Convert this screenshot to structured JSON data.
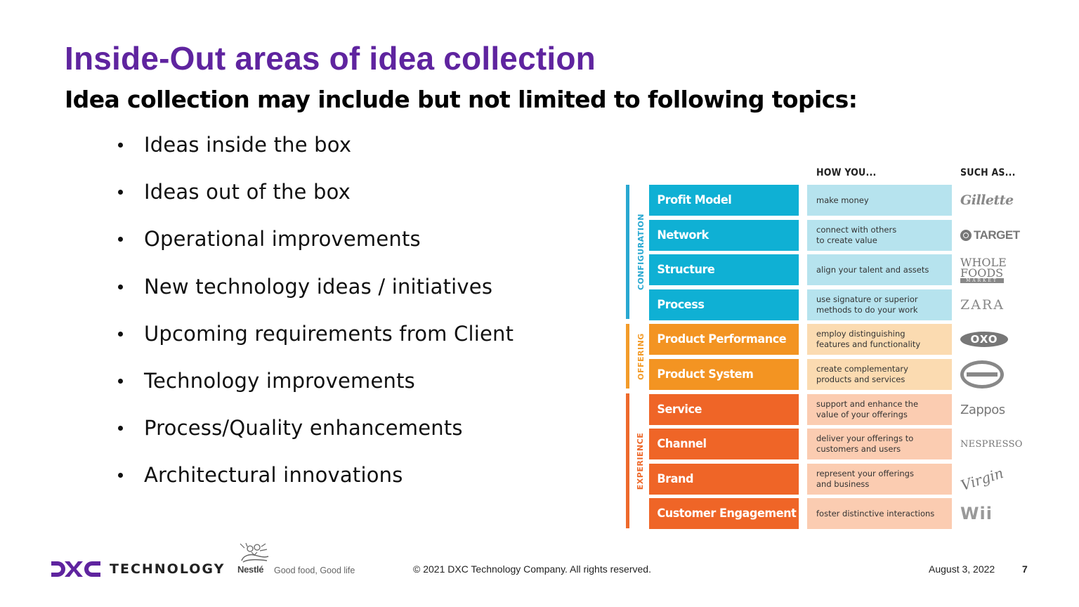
{
  "title": "Inside-Out areas of idea collection",
  "subtitle": "Idea collection may include but not limited to following topics:",
  "bullets": [
    "Ideas inside the box",
    "Ideas out of the box",
    "Operational improvements",
    "New technology ideas / initiatives",
    "Upcoming requirements from Client",
    "Technology improvements",
    "Process/Quality enhancements",
    "Architectural innovations"
  ],
  "framework": {
    "header_how": "HOW YOU...",
    "header_such": "SUCH AS...",
    "groups": [
      {
        "label": "CONFIGURATION",
        "color": "#29a8d1"
      },
      {
        "label": "OFFERING",
        "color": "#f39c2a"
      },
      {
        "label": "EXPERIENCE",
        "color": "#ee6a2c"
      }
    ],
    "rows": [
      {
        "name": "Profit Model",
        "desc": "make money",
        "logo": "Gillette",
        "logo_icon": "gillette-logo",
        "group": 0
      },
      {
        "name": "Network",
        "desc": "connect with others\nto create value",
        "logo": "TARGET",
        "logo_icon": "target-logo",
        "group": 0
      },
      {
        "name": "Structure",
        "desc": "align your talent and assets",
        "logo": "WHOLE\nFOODS",
        "logo_sub": "MARKET",
        "logo_icon": "whole-foods-logo",
        "group": 0
      },
      {
        "name": "Process",
        "desc": "use signature or superior\nmethods to do your work",
        "logo": "ZARA",
        "logo_icon": "zara-logo",
        "group": 0
      },
      {
        "name": "Product Performance",
        "desc": "employ distinguishing\nfeatures and functionality",
        "logo": "OXO",
        "logo_icon": "oxo-logo",
        "group": 1
      },
      {
        "name": "Product System",
        "desc": "create complementary\nproducts and services",
        "logo": "",
        "logo_icon": "scion-logo",
        "group": 1
      },
      {
        "name": "Service",
        "desc": "support and enhance the\nvalue of your offerings",
        "logo": "Zappos",
        "logo_icon": "zappos-logo",
        "group": 2
      },
      {
        "name": "Channel",
        "desc": "deliver your offerings to\ncustomers and users",
        "logo": "NESPRESSO",
        "logo_icon": "nespresso-logo",
        "group": 2
      },
      {
        "name": "Brand",
        "desc": "represent your offerings\nand business",
        "logo": "Virgin",
        "logo_icon": "virgin-logo",
        "group": 2
      },
      {
        "name": "Customer Engagement",
        "desc": "foster distinctive interactions",
        "logo": "Wii",
        "logo_icon": "wii-logo",
        "group": 2
      }
    ],
    "row_colors": {
      "config": {
        "name": "#0fb0d4",
        "desc": "#b6e3ee"
      },
      "offering": {
        "name": "#f39422",
        "desc": "#fbdbb1"
      },
      "experience": {
        "name": "#ef6527",
        "desc": "#fbccb1"
      }
    }
  },
  "footer": {
    "brand": "TECHNOLOGY",
    "brand_icon": "dxc-logo",
    "partner": "Nestlé",
    "partner_tagline": "Good food, Good life",
    "partner_icon": "nestle-nest-logo",
    "copyright": "© 2021 DXC Technology Company. All rights reserved.",
    "date": "August 3, 2022",
    "page_number": "7",
    "brand_color": "#5f249f"
  }
}
